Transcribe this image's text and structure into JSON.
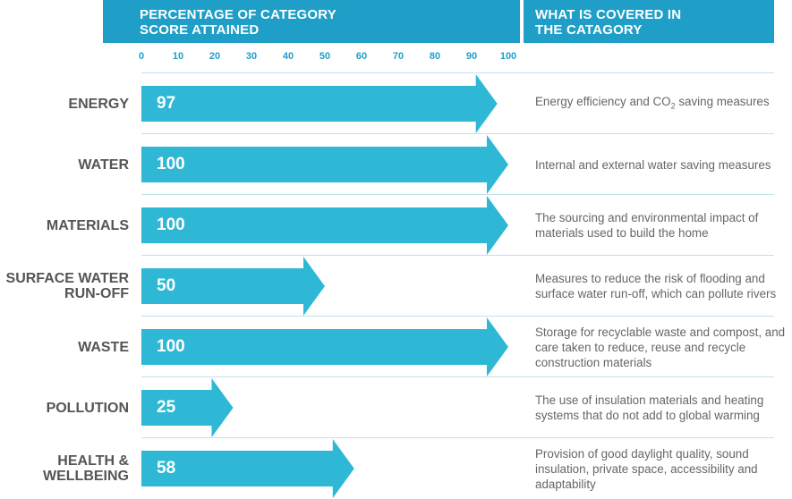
{
  "header": {
    "left_lines": [
      "PERCENTAGE OF CATEGORY",
      "SCORE ATTAINED"
    ],
    "right_lines": [
      "WHAT IS COVERED IN",
      "THE CATAGORY"
    ]
  },
  "colors": {
    "header": "#1f9fc7",
    "arrow": "#2eb8d5",
    "label": "#555555",
    "desc": "#666666",
    "separator": "#bfe3ef"
  },
  "chart_data": {
    "type": "bar",
    "orientation": "horizontal",
    "title": "PERCENTAGE OF CATEGORY SCORE ATTAINED",
    "xlim": [
      0,
      100
    ],
    "ticks": [
      0,
      10,
      20,
      30,
      40,
      50,
      60,
      70,
      80,
      90,
      100
    ],
    "categories": [
      "ENERGY",
      "WATER",
      "MATERIALS",
      "SURFACE WATER RUN-OFF",
      "WASTE",
      "POLLUTION",
      "HEALTH & WELLBEING"
    ],
    "values": [
      97,
      100,
      100,
      50,
      100,
      25,
      58
    ]
  },
  "rows": [
    {
      "label_lines": [
        "ENERGY"
      ],
      "value": 97,
      "value_label": "97",
      "desc_parts": [
        "Energy efficiency and CO",
        "2",
        " saving measures"
      ]
    },
    {
      "label_lines": [
        "WATER"
      ],
      "value": 100,
      "value_label": "100",
      "desc_parts": [
        "Internal and external water saving measures"
      ]
    },
    {
      "label_lines": [
        "MATERIALS"
      ],
      "value": 100,
      "value_label": "100",
      "desc_parts": [
        "The sourcing and environmental impact of materials used to build the home"
      ]
    },
    {
      "label_lines": [
        "SURFACE WATER",
        "RUN-OFF"
      ],
      "value": 50,
      "value_label": "50",
      "desc_parts": [
        "Measures to reduce the risk of flooding and surface water run-off, which can pollute rivers"
      ]
    },
    {
      "label_lines": [
        "WASTE"
      ],
      "value": 100,
      "value_label": "100",
      "desc_parts": [
        "Storage for recyclable waste and compost, and care taken to reduce, reuse and recycle construction materials"
      ]
    },
    {
      "label_lines": [
        "POLLUTION"
      ],
      "value": 25,
      "value_label": "25",
      "desc_parts": [
        "The use of insulation materials and heating systems that do not add to global warming"
      ]
    },
    {
      "label_lines": [
        "HEALTH &",
        "WELLBEING"
      ],
      "value": 58,
      "value_label": "58",
      "desc_parts": [
        "Provision of good daylight quality, sound insulation, private space, accessibility and adaptability"
      ]
    }
  ]
}
